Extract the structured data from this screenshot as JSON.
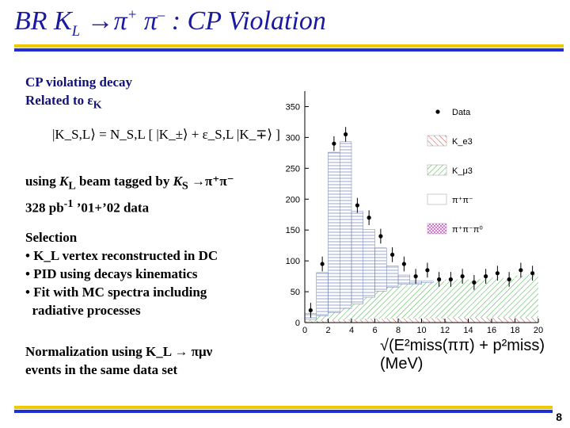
{
  "title": {
    "part1": "BR K",
    "sub": "L",
    "arrow": " →",
    "pi_plus": "π",
    "plus": "+",
    "pi_minus": " π",
    "minus": "–",
    "rest": " : CP Violation"
  },
  "intro": {
    "line1": "CP violating decay",
    "line2_prefix": "Related to ",
    "epsilon": "ε",
    "epsilon_sub": "K"
  },
  "formula": "|K_S,L⟩ = N_S,L [ |K_±⟩ + ε_S,L |K_∓⟩ ]",
  "tagging": {
    "line1_prefix": "using ",
    "kl": "K",
    "kl_sub": "L",
    "line1_mid": " beam tagged by ",
    "ks": "K",
    "ks_sub": "S",
    "line1_suffix": " →π⁺π⁻",
    "line2": "328 pb",
    "line2_sup": "-1",
    "line2_suffix": " ’01+’02 data"
  },
  "selection": {
    "heading": "Selection",
    "items": [
      "• K_L vertex reconstructed in DC",
      "• PID using decays kinematics",
      "• Fit with MC spectra including",
      "  radiative processes"
    ]
  },
  "normalization": {
    "line1": "Normalization using K_L → πμν",
    "line2": "events in the same data set"
  },
  "chart_data": {
    "type": "bar",
    "xlabel": "√(E²miss(ππ) + p²miss) (MeV)",
    "xlim": [
      0,
      20
    ],
    "ylim": [
      0,
      375
    ],
    "xticks": [
      0,
      2,
      4,
      6,
      8,
      10,
      12,
      14,
      16,
      18,
      20
    ],
    "yticks": [
      0,
      50,
      100,
      150,
      200,
      250,
      300,
      350
    ],
    "legend": [
      "Data",
      "K_e3",
      "K_μ3",
      "π⁺π⁻",
      "π⁺π⁻π⁰"
    ],
    "legend_position": "top-right",
    "x": [
      0.5,
      1.5,
      2.5,
      3.5,
      4.5,
      5.5,
      6.5,
      7.5,
      8.5,
      9.5,
      10.5,
      11.5,
      12.5,
      13.5,
      14.5,
      15.5,
      16.5,
      17.5,
      18.5,
      19.5
    ],
    "series": [
      {
        "name": "Data",
        "values": [
          20,
          95,
          290,
          305,
          190,
          170,
          140,
          110,
          95,
          75,
          85,
          70,
          70,
          75,
          65,
          75,
          80,
          70,
          85,
          80
        ]
      },
      {
        "name": "π⁺π⁻",
        "values": [
          10,
          70,
          260,
          270,
          150,
          110,
          70,
          35,
          15,
          5,
          2,
          0,
          0,
          0,
          0,
          0,
          0,
          0,
          0,
          0
        ]
      },
      {
        "name": "K_μ3",
        "values": [
          3,
          8,
          12,
          18,
          25,
          35,
          45,
          50,
          55,
          55,
          58,
          60,
          62,
          62,
          62,
          63,
          65,
          63,
          68,
          70
        ]
      },
      {
        "name": "K_e3",
        "values": [
          2,
          3,
          4,
          5,
          5,
          6,
          6,
          7,
          7,
          7,
          7,
          7,
          8,
          8,
          8,
          8,
          8,
          8,
          8,
          8
        ]
      }
    ]
  },
  "page_number": "8"
}
